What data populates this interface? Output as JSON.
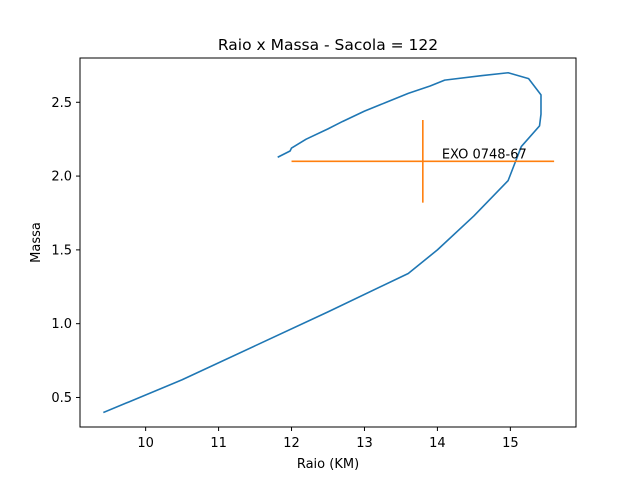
{
  "chart_data": {
    "type": "line",
    "title": "Raio x Massa - Sacola = 122",
    "xlabel": "Raio (KM)",
    "ylabel": "Massa",
    "xlim": [
      9.1,
      15.9
    ],
    "ylim": [
      0.3,
      2.8
    ],
    "xticks": [
      10,
      11,
      12,
      13,
      14,
      15
    ],
    "yticks": [
      0.5,
      1.0,
      1.5,
      2.0,
      2.5
    ],
    "xtick_labels": [
      "10",
      "11",
      "12",
      "13",
      "14",
      "15"
    ],
    "ytick_labels": [
      "0.5",
      "1.0",
      "1.5",
      "2.0",
      "2.5"
    ],
    "grid": false,
    "series": [
      {
        "color": "#1f77b4",
        "x": [
          9.43,
          10.5,
          11.5,
          12.5,
          13.6,
          14.0,
          14.5,
          14.97,
          15.15,
          15.4,
          15.42,
          15.42,
          15.25,
          14.97,
          14.6,
          14.1,
          13.9,
          13.6,
          13.3,
          13.0,
          12.7,
          12.5,
          12.2,
          12.0,
          11.98,
          11.82
        ],
        "y": [
          0.4,
          0.62,
          0.85,
          1.08,
          1.34,
          1.5,
          1.73,
          1.97,
          2.2,
          2.34,
          2.42,
          2.55,
          2.66,
          2.7,
          2.68,
          2.65,
          2.61,
          2.56,
          2.5,
          2.44,
          2.37,
          2.32,
          2.25,
          2.19,
          2.17,
          2.13
        ]
      }
    ],
    "errorbar": {
      "color": "#ff7f0e",
      "label": "EXO 0748-67",
      "x": 13.8,
      "y": 2.1,
      "x_range": [
        12.0,
        15.6
      ],
      "y_range": [
        1.82,
        2.38
      ]
    }
  }
}
